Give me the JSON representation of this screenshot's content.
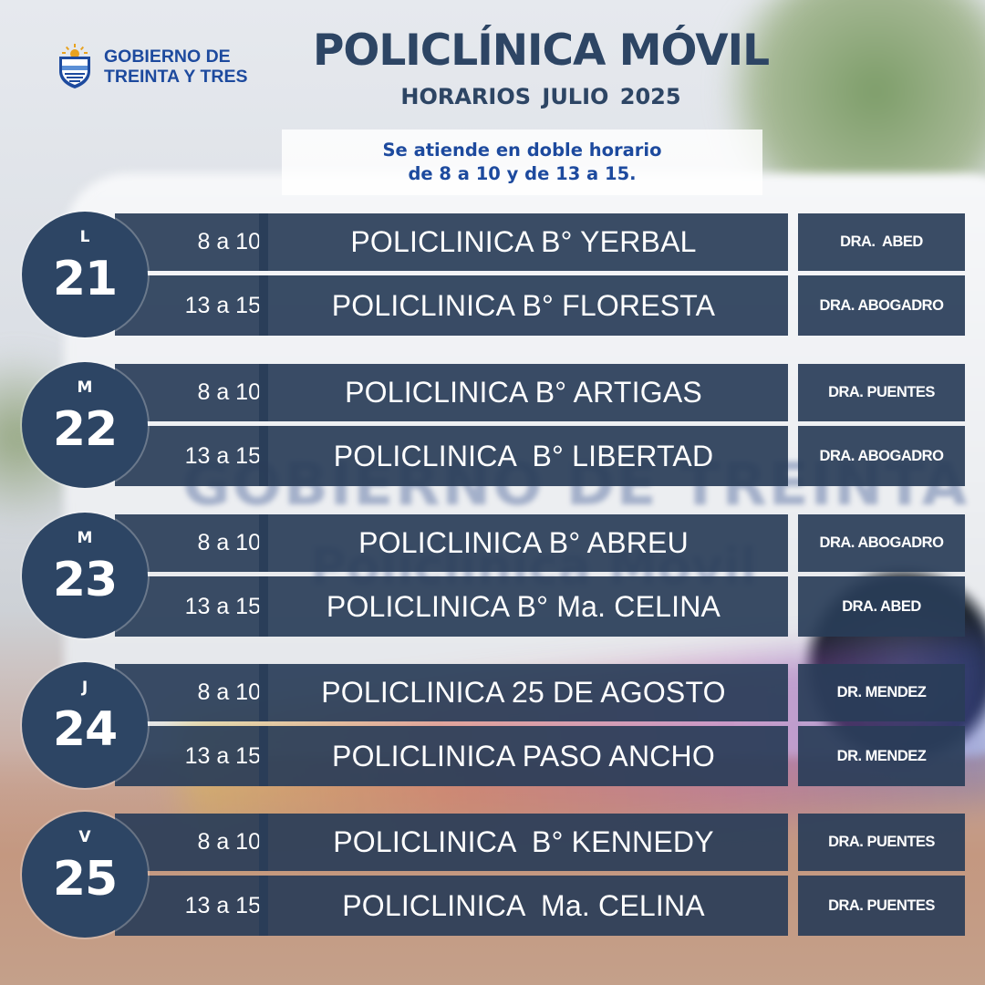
{
  "header": {
    "logo_line1": "GOBIERNO DE",
    "logo_line2": "TREINTA Y TRES",
    "title": "POLICLÍNICA MÓVIL",
    "subtitle": "HORARIOS  JULIO 2025",
    "notice_line1": "Se atiende en doble horario",
    "notice_line2": "de 8 a 10 y de 13 a 15."
  },
  "days": [
    {
      "letter": "L",
      "number": "21",
      "rows": [
        {
          "time": "8 a 10",
          "place": "POLICLINICA B° YERBAL",
          "doctor": "DRA.  ABED"
        },
        {
          "time": "13 a 15",
          "place": "POLICLINICA B° FLORESTA",
          "doctor": "DRA. ABOGADRO"
        }
      ]
    },
    {
      "letter": "M",
      "number": "22",
      "rows": [
        {
          "time": "8 a 10",
          "place": "POLICLINICA B° ARTIGAS",
          "doctor": "DRA. PUENTES"
        },
        {
          "time": "13 a 15",
          "place": "POLICLINICA  B° LIBERTAD",
          "doctor": "DRA. ABOGADRO"
        }
      ]
    },
    {
      "letter": "M",
      "number": "23",
      "rows": [
        {
          "time": "8 a 10",
          "place": "POLICLINICA B° ABREU",
          "doctor": "DRA. ABOGADRO"
        },
        {
          "time": "13 a 15",
          "place": "POLICLINICA B° Ma. CELINA",
          "doctor": "DRA. ABED"
        }
      ]
    },
    {
      "letter": "J",
      "number": "24",
      "rows": [
        {
          "time": "8 a 10",
          "place": "POLICLINICA 25 DE AGOSTO",
          "doctor": "DR. MENDEZ"
        },
        {
          "time": "13 a 15",
          "place": "POLICLINICA PASO ANCHO",
          "doctor": "DR. MENDEZ"
        }
      ]
    },
    {
      "letter": "V",
      "number": "25",
      "rows": [
        {
          "time": "8 a 10",
          "place": "POLICLINICA  B° KENNEDY",
          "doctor": "DRA. PUENTES"
        },
        {
          "time": "13 a 15",
          "place": "POLICLINICA  Ma. CELINA",
          "doctor": "DRA. PUENTES"
        }
      ]
    }
  ]
}
